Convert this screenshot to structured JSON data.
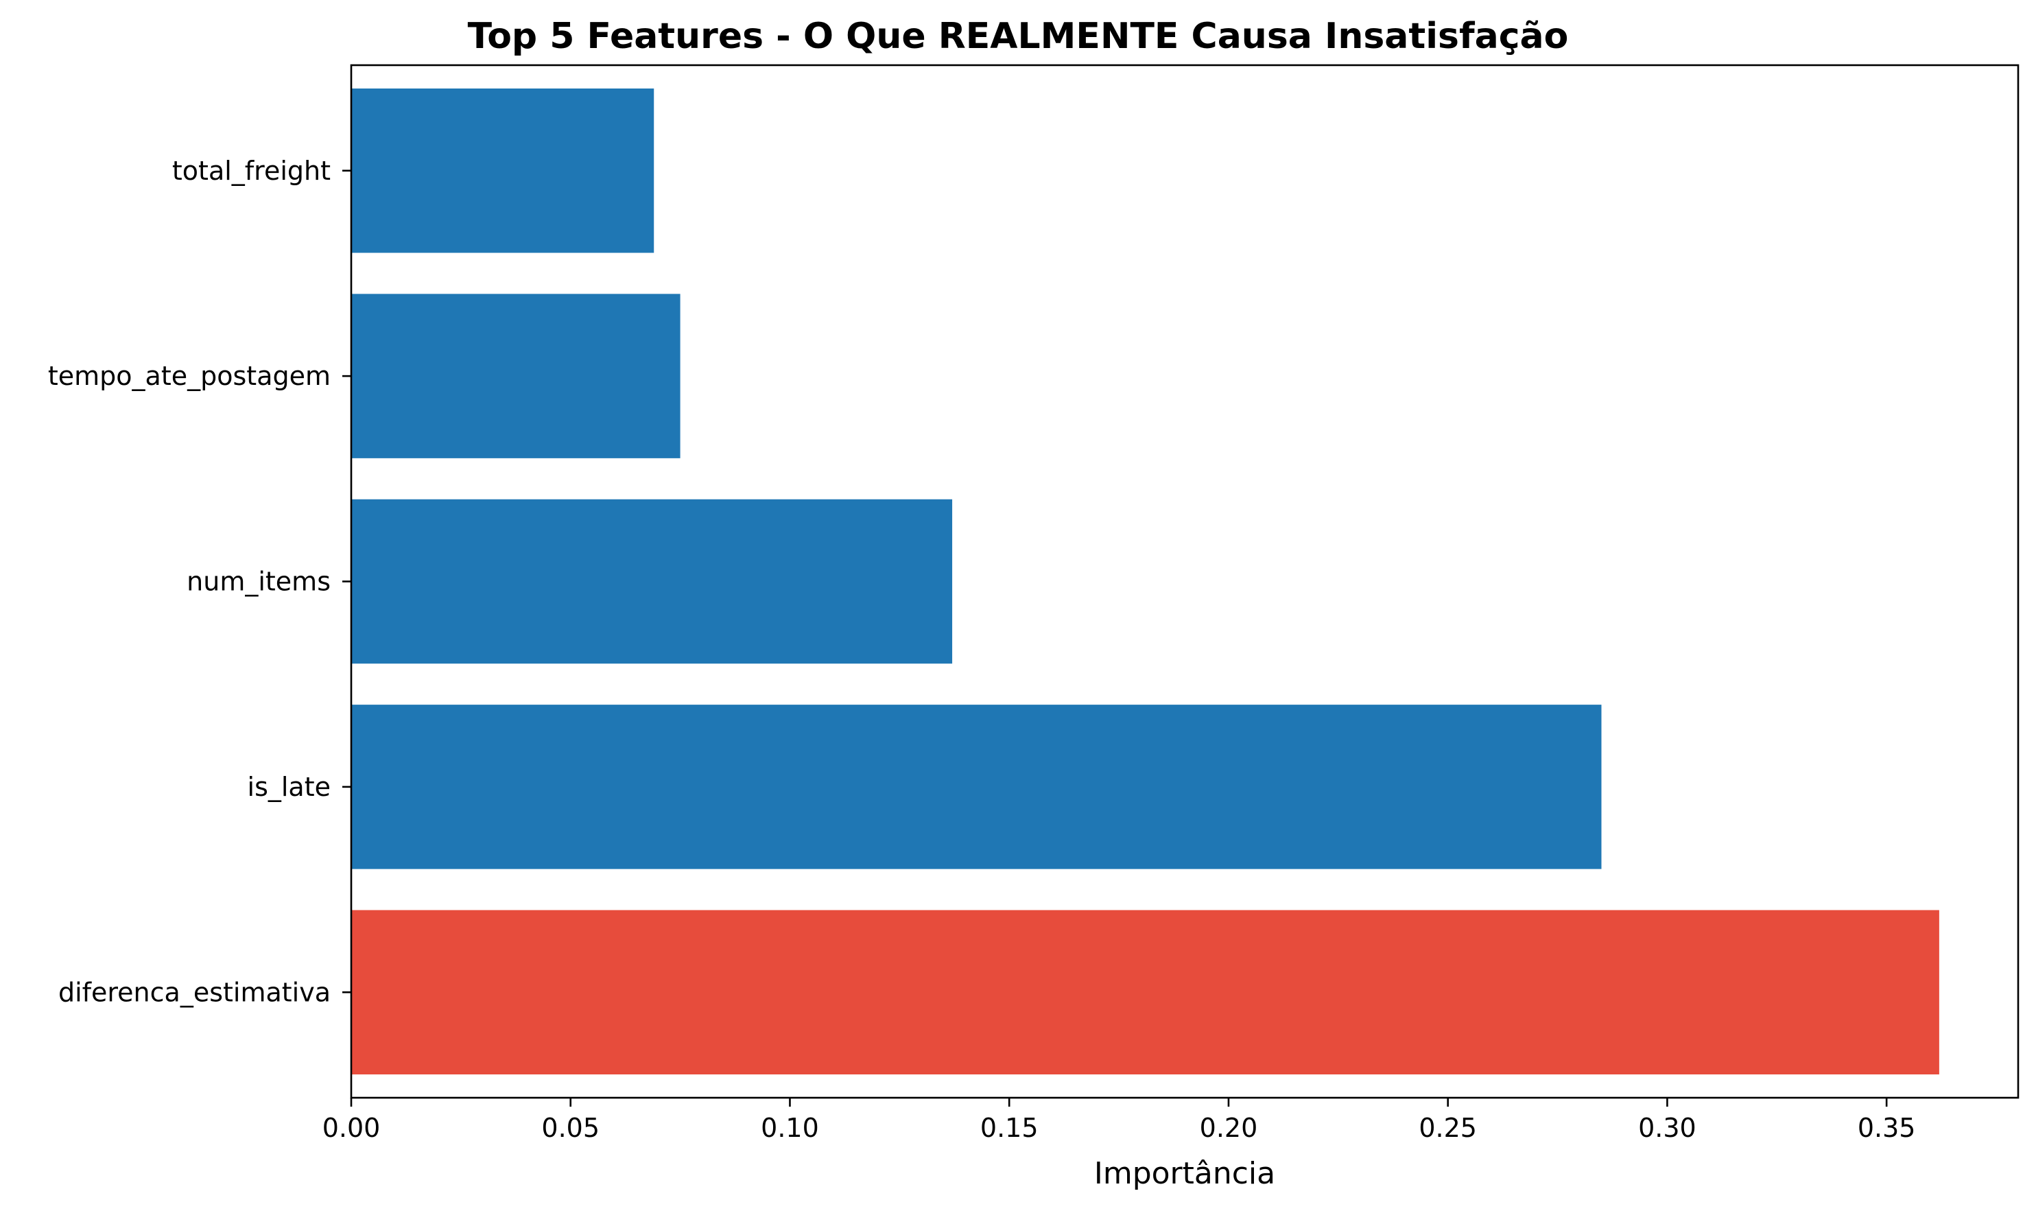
{
  "chart_data": {
    "type": "bar",
    "orientation": "horizontal",
    "title": "Top 5 Features - O Que REALMENTE Causa Insatisfação",
    "xlabel": "Importância",
    "ylabel": "",
    "categories": [
      "diferenca_estimativa",
      "is_late",
      "num_items",
      "tempo_ate_postagem",
      "total_freight"
    ],
    "values": [
      0.362,
      0.285,
      0.137,
      0.075,
      0.069
    ],
    "bar_colors": [
      "#e74c3c",
      "#1f77b4",
      "#1f77b4",
      "#1f77b4",
      "#1f77b4"
    ],
    "xlim": [
      0,
      0.38
    ],
    "xticks": [
      0.0,
      0.05,
      0.1,
      0.15,
      0.2,
      0.25,
      0.3,
      0.35
    ],
    "xtick_labels": [
      "0.00",
      "0.05",
      "0.10",
      "0.15",
      "0.20",
      "0.25",
      "0.30",
      "0.35"
    ],
    "grid": false,
    "legend": "none"
  }
}
